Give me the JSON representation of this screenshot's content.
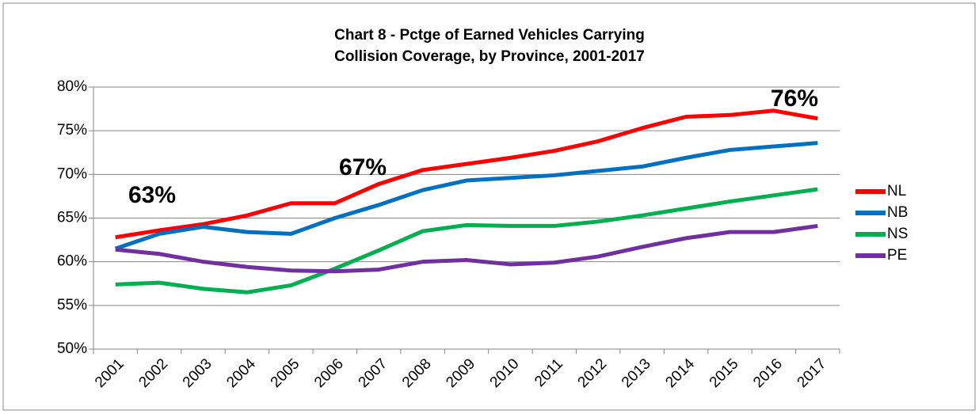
{
  "chart_data": {
    "type": "line",
    "title": [
      "Chart 8 - Pctge of Earned Vehicles Carrying",
      "Collision Coverage, by Province, 2001-2017"
    ],
    "categories": [
      "2001",
      "2002",
      "2003",
      "2004",
      "2005",
      "2006",
      "2007",
      "2008",
      "2009",
      "2010",
      "2011",
      "2012",
      "2013",
      "2014",
      "2015",
      "2016",
      "2017"
    ],
    "series": [
      {
        "name": "NL",
        "color": "#ff0000",
        "values": [
          62.8,
          63.6,
          64.3,
          65.3,
          66.7,
          66.7,
          68.9,
          70.5,
          71.2,
          71.9,
          72.7,
          73.8,
          75.3,
          76.6,
          76.8,
          77.3,
          76.4
        ]
      },
      {
        "name": "NB",
        "color": "#0070c0",
        "values": [
          61.5,
          63.2,
          64.0,
          63.4,
          63.2,
          65.0,
          66.5,
          68.2,
          69.3,
          69.6,
          69.9,
          70.4,
          70.9,
          71.9,
          72.8,
          73.2,
          73.6
        ]
      },
      {
        "name": "NS",
        "color": "#00b050",
        "values": [
          57.4,
          57.6,
          56.9,
          56.5,
          57.3,
          59.2,
          61.3,
          63.5,
          64.2,
          64.1,
          64.1,
          64.6,
          65.3,
          66.1,
          66.9,
          67.6,
          68.3
        ]
      },
      {
        "name": "PE",
        "color": "#7030a0",
        "values": [
          61.4,
          60.9,
          60.0,
          59.4,
          59.0,
          58.9,
          59.1,
          60.0,
          60.2,
          59.7,
          59.9,
          60.6,
          61.7,
          62.7,
          63.4,
          63.4,
          64.1
        ]
      }
    ],
    "annotations": [
      "63%",
      "67%",
      "76%"
    ],
    "ylim": [
      50,
      80
    ],
    "yticks": [
      {
        "value": 50,
        "label": "50%"
      },
      {
        "value": 55,
        "label": "55%"
      },
      {
        "value": 60,
        "label": "60%"
      },
      {
        "value": 65,
        "label": "65%"
      },
      {
        "value": 70,
        "label": "70%"
      },
      {
        "value": 75,
        "label": "75%"
      },
      {
        "value": 80,
        "label": "80%"
      }
    ],
    "grid": true,
    "legend": "right"
  }
}
